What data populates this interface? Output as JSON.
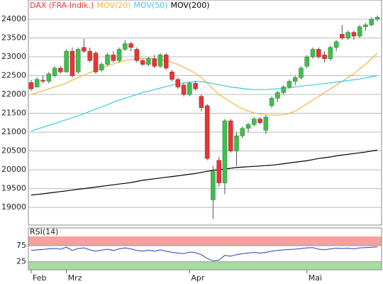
{
  "chart_data": {
    "type": "candlestick",
    "categories": [
      "Feb",
      null,
      null,
      null,
      null,
      null,
      "Mrz",
      null,
      null,
      null,
      null,
      null,
      null,
      null,
      null,
      null,
      null,
      null,
      null,
      null,
      null,
      null,
      null,
      null,
      null,
      null,
      null,
      "Apr",
      null,
      null,
      null,
      null,
      null,
      null,
      null,
      null,
      null,
      null,
      null,
      null,
      null,
      null,
      null,
      null,
      null,
      null,
      null,
      "Mai",
      null,
      null,
      null,
      null,
      null,
      null,
      null,
      null,
      null,
      null,
      null,
      null
    ],
    "candles": {
      "name": "DAX (FRA-Indik.)",
      "color": "#e03a3a",
      "up_color": "#3fbf4f",
      "down_color": "#e83535",
      "open": [
        22320,
        22200,
        22380,
        22350,
        22500,
        22700,
        22600,
        23150,
        22600,
        23250,
        23150,
        23100,
        22650,
        22800,
        23050,
        22900,
        23200,
        23350,
        23200,
        22900,
        22800,
        22950,
        22750,
        23050,
        22600,
        22400,
        22250,
        22000,
        22300,
        21950,
        21700,
        19200,
        20250,
        19650,
        21300,
        20500,
        20900,
        21100,
        21200,
        21350,
        21050,
        21700,
        21900,
        22050,
        22200,
        22350,
        22450,
        22750,
        23000,
        23200,
        23050,
        22950,
        23250,
        23600,
        23500,
        23650,
        23550,
        23800,
        23850,
        24000
      ],
      "high": [
        22380,
        22450,
        22500,
        22600,
        22750,
        22760,
        23200,
        23250,
        23250,
        23480,
        23250,
        23150,
        22850,
        23100,
        23150,
        23250,
        23450,
        23400,
        23250,
        22950,
        23000,
        23050,
        23100,
        23100,
        22650,
        22450,
        22300,
        22350,
        22350,
        22000,
        21750,
        20100,
        20350,
        21350,
        21350,
        21000,
        21150,
        21250,
        21400,
        21400,
        21450,
        21950,
        22100,
        22250,
        22400,
        22500,
        22750,
        23050,
        23250,
        23250,
        23150,
        23300,
        23450,
        23850,
        23700,
        23700,
        23850,
        23900,
        24050,
        24100
      ],
      "low": [
        22100,
        22180,
        22300,
        22300,
        22450,
        22550,
        22580,
        22450,
        22550,
        23100,
        22850,
        22550,
        22600,
        22750,
        22850,
        22850,
        23150,
        23150,
        22850,
        22750,
        22750,
        22700,
        22700,
        22650,
        22350,
        22150,
        21950,
        21950,
        22100,
        21550,
        20250,
        18700,
        19550,
        19350,
        20450,
        20100,
        20850,
        21000,
        21150,
        21200,
        20950,
        21650,
        21800,
        22000,
        22150,
        22250,
        22400,
        22700,
        22950,
        22950,
        22850,
        22900,
        23150,
        23450,
        23450,
        23450,
        23500,
        23700,
        23800,
        23950
      ],
      "close": [
        22150,
        22400,
        22350,
        22550,
        22700,
        22600,
        23150,
        22500,
        23200,
        23150,
        22900,
        22600,
        22800,
        23050,
        22900,
        23200,
        23350,
        23250,
        22900,
        22800,
        22950,
        22750,
        23050,
        22700,
        22400,
        22200,
        22000,
        22300,
        22150,
        21650,
        20300,
        19950,
        19650,
        21300,
        20500,
        20900,
        21100,
        21200,
        21350,
        21250,
        21400,
        21900,
        22050,
        22200,
        22350,
        22450,
        22700,
        23000,
        23200,
        23000,
        22950,
        23250,
        23400,
        23500,
        23650,
        23550,
        23800,
        23850,
        24000,
        24050
      ]
    },
    "series": [
      {
        "name": "MOV(20)",
        "color": "#f0b440",
        "values": [
          22000,
          22050,
          22100,
          22150,
          22200,
          22250,
          22300,
          22380,
          22450,
          22520,
          22580,
          22640,
          22700,
          22760,
          22810,
          22860,
          22900,
          22930,
          22950,
          22960,
          22960,
          22950,
          22930,
          22900,
          22850,
          22800,
          22720,
          22650,
          22560,
          22450,
          22300,
          22150,
          22000,
          21900,
          21800,
          21700,
          21620,
          21560,
          21510,
          21480,
          21460,
          21450,
          21450,
          21460,
          21500,
          21560,
          21650,
          21750,
          21850,
          21950,
          22050,
          22150,
          22250,
          22350,
          22450,
          22550,
          22680,
          22800,
          22950,
          23100
        ]
      },
      {
        "name": "MOV(50)",
        "color": "#3cc8e8",
        "values": [
          21030,
          21080,
          21130,
          21180,
          21230,
          21280,
          21330,
          21380,
          21430,
          21490,
          21550,
          21610,
          21670,
          21730,
          21790,
          21850,
          21900,
          21950,
          22000,
          22050,
          22090,
          22130,
          22170,
          22210,
          22250,
          22280,
          22310,
          22330,
          22350,
          22340,
          22320,
          22290,
          22260,
          22230,
          22200,
          22180,
          22160,
          22140,
          22130,
          22130,
          22130,
          22140,
          22150,
          22160,
          22180,
          22200,
          22220,
          22240,
          22250,
          22270,
          22290,
          22310,
          22330,
          22350,
          22370,
          22390,
          22410,
          22440,
          22470,
          22500
        ]
      },
      {
        "name": "MOV(200)",
        "color": "#000000",
        "values": [
          19330,
          19345,
          19360,
          19380,
          19400,
          19420,
          19440,
          19460,
          19480,
          19500,
          19520,
          19540,
          19560,
          19580,
          19600,
          19620,
          19640,
          19660,
          19690,
          19720,
          19740,
          19760,
          19780,
          19800,
          19820,
          19840,
          19860,
          19880,
          19900,
          19930,
          19960,
          19980,
          20000,
          20020,
          20040,
          20060,
          20070,
          20080,
          20090,
          20100,
          20110,
          20120,
          20140,
          20160,
          20180,
          20200,
          20220,
          20240,
          20270,
          20300,
          20320,
          20340,
          20370,
          20390,
          20410,
          20430,
          20450,
          20470,
          20500,
          20520
        ]
      }
    ],
    "ylim": [
      18530,
      24510
    ],
    "yticks": [
      19000,
      19500,
      20000,
      20500,
      21000,
      21500,
      22000,
      22500,
      23000,
      23500,
      24000
    ],
    "grid": true,
    "rsi": {
      "name": "RSI(14)",
      "color": "#2040c0",
      "ylim": [
        0,
        130
      ],
      "yticks": [
        25,
        75
      ],
      "values": [
        60,
        62,
        63,
        65,
        66,
        64,
        70,
        60,
        66,
        68,
        62,
        58,
        61,
        64,
        60,
        65,
        68,
        65,
        60,
        58,
        61,
        58,
        62,
        58,
        54,
        52,
        50,
        55,
        53,
        47,
        35,
        28,
        30,
        45,
        42,
        47,
        50,
        52,
        54,
        52,
        54,
        58,
        60,
        62,
        63,
        64,
        66,
        68,
        69,
        64,
        62,
        65,
        67,
        66,
        67,
        65,
        68,
        69,
        70,
        71
      ]
    }
  }
}
